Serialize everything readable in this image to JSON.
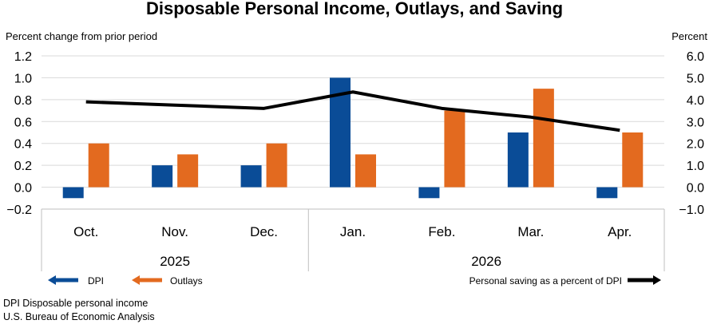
{
  "chart_data": {
    "type": "bar",
    "title": "Disposable Personal Income, Outlays, and Saving",
    "left_axis_label": "Percent change from prior period",
    "right_axis_label": "Percent",
    "categories": [
      "Oct.",
      "Nov.",
      "Dec.",
      "Jan.",
      "Feb.",
      "Mar.",
      "Apr."
    ],
    "year_groups": [
      {
        "label": "2025",
        "start": 0,
        "end": 2
      },
      {
        "label": "2026",
        "start": 3,
        "end": 6
      }
    ],
    "left_ylim": [
      -0.2,
      1.2
    ],
    "left_ticks": [
      "1.2",
      "1.0",
      "0.8",
      "0.6",
      "0.4",
      "0.2",
      "0.0",
      "−0.2"
    ],
    "left_tick_values": [
      1.2,
      1.0,
      0.8,
      0.6,
      0.4,
      0.2,
      0.0,
      -0.2
    ],
    "right_ylim": [
      -1.0,
      6.0
    ],
    "right_ticks": [
      "6.0",
      "5.0",
      "4.0",
      "3.0",
      "2.0",
      "1.0",
      "0.0",
      "−1.0"
    ],
    "right_tick_values": [
      6.0,
      5.0,
      4.0,
      3.0,
      2.0,
      1.0,
      0.0,
      -1.0
    ],
    "grid": true,
    "series": [
      {
        "name": "DPI",
        "type": "bar",
        "axis": "left",
        "color": "#0a4c97",
        "values": [
          -0.1,
          0.2,
          0.2,
          1.0,
          -0.1,
          0.5,
          -0.1
        ]
      },
      {
        "name": "Outlays",
        "type": "bar",
        "axis": "left",
        "color": "#e36a1f",
        "values": [
          0.4,
          0.3,
          0.4,
          0.3,
          0.7,
          0.9,
          0.5
        ]
      },
      {
        "name": "Personal saving as a percent of DPI",
        "type": "line",
        "axis": "right",
        "color": "#000000",
        "values": [
          3.9,
          3.75,
          3.6,
          4.35,
          3.6,
          3.2,
          2.6
        ]
      }
    ]
  },
  "legend": {
    "dpi_label": "DPI",
    "outlays_label": "Outlays",
    "saving_label": "Personal saving as a percent of DPI"
  },
  "footnotes": {
    "line1": "DPI Disposable personal income",
    "line2": "U.S. Bureau of Economic Analysis"
  }
}
